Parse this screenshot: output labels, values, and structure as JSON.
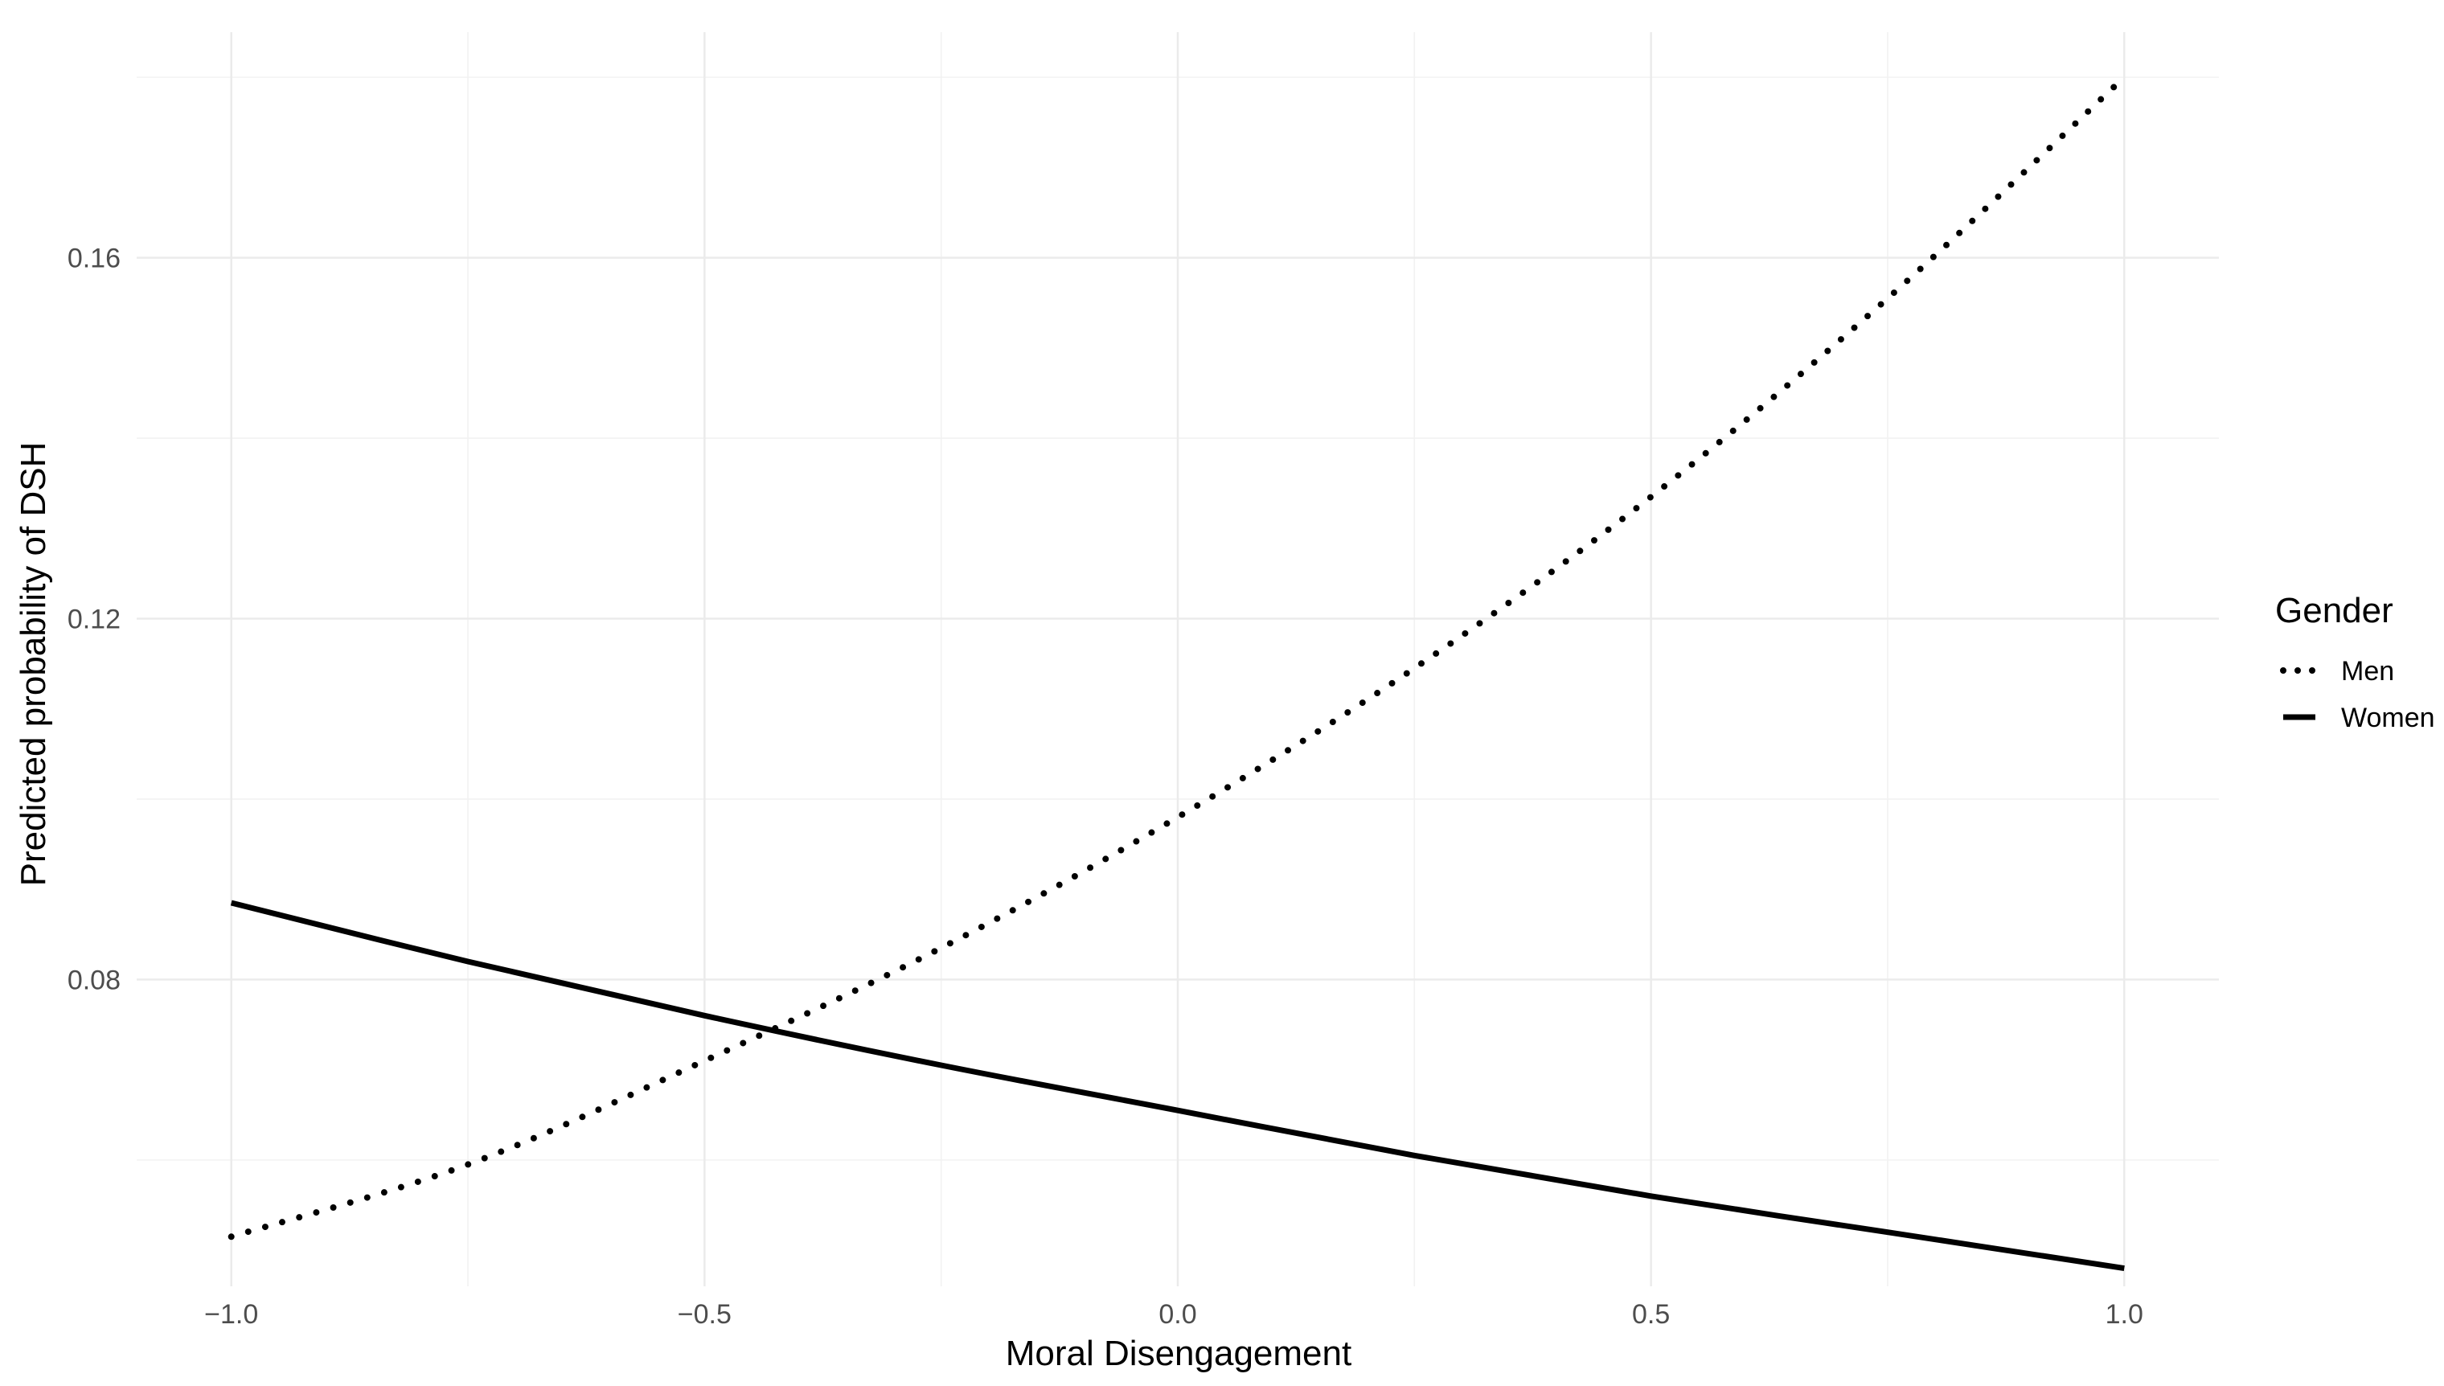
{
  "chart_data": {
    "type": "line",
    "xlabel": "Moral Disengagement",
    "ylabel": "Predicted probability of DSH",
    "xlim": [
      -1.1,
      1.1
    ],
    "ylim": [
      0.046,
      0.185
    ],
    "x_ticks": [
      {
        "value": -1.0,
        "label": "−1.0"
      },
      {
        "value": -0.5,
        "label": "−0.5"
      },
      {
        "value": 0.0,
        "label": "0.0"
      },
      {
        "value": 0.5,
        "label": "0.5"
      },
      {
        "value": 1.0,
        "label": "1.0"
      }
    ],
    "y_ticks": [
      {
        "value": 0.08,
        "label": "0.08"
      },
      {
        "value": 0.12,
        "label": "0.12"
      },
      {
        "value": 0.16,
        "label": "0.16"
      }
    ],
    "grid": true,
    "legend": {
      "title": "Gender",
      "position": "right"
    },
    "series": [
      {
        "name": "Men",
        "line_style": "dotted",
        "color": "#000000",
        "x": [
          -1.0,
          -0.75,
          -0.5,
          -0.25,
          0.0,
          0.25,
          0.5,
          0.75,
          1.0
        ],
        "y": [
          0.0515,
          0.0595,
          0.071,
          0.0835,
          0.098,
          0.1145,
          0.1335,
          0.1555,
          0.18
        ]
      },
      {
        "name": "Women",
        "line_style": "solid",
        "color": "#000000",
        "x": [
          -1.0,
          -0.75,
          -0.5,
          -0.25,
          0.0,
          0.25,
          0.5,
          0.75,
          1.0
        ],
        "y": [
          0.0885,
          0.082,
          0.076,
          0.0705,
          0.0655,
          0.0605,
          0.056,
          0.052,
          0.048
        ]
      }
    ]
  }
}
